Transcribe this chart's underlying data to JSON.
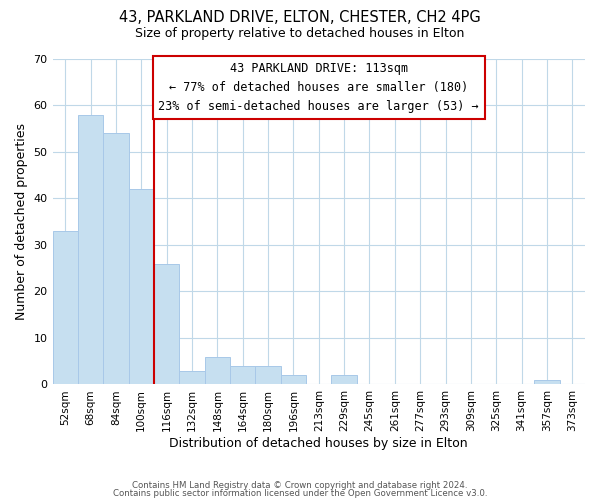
{
  "title_line1": "43, PARKLAND DRIVE, ELTON, CHESTER, CH2 4PG",
  "title_line2": "Size of property relative to detached houses in Elton",
  "xlabel": "Distribution of detached houses by size in Elton",
  "ylabel": "Number of detached properties",
  "bar_labels": [
    "52sqm",
    "68sqm",
    "84sqm",
    "100sqm",
    "116sqm",
    "132sqm",
    "148sqm",
    "164sqm",
    "180sqm",
    "196sqm",
    "213sqm",
    "229sqm",
    "245sqm",
    "261sqm",
    "277sqm",
    "293sqm",
    "309sqm",
    "325sqm",
    "341sqm",
    "357sqm",
    "373sqm"
  ],
  "bar_values": [
    33,
    58,
    54,
    42,
    26,
    3,
    6,
    4,
    4,
    2,
    0,
    2,
    0,
    0,
    0,
    0,
    0,
    0,
    0,
    1,
    0
  ],
  "bar_color": "#c6dff0",
  "bar_edge_color": "#a8c8e8",
  "highlight_line_color": "#cc0000",
  "highlight_line_index": 4,
  "highlight_box_text": "43 PARKLAND DRIVE: 113sqm\n← 77% of detached houses are smaller (180)\n23% of semi-detached houses are larger (53) →",
  "ylim": [
    0,
    70
  ],
  "yticks": [
    0,
    10,
    20,
    30,
    40,
    50,
    60,
    70
  ],
  "background_color": "#ffffff",
  "grid_color": "#c0d8e8",
  "footer_line1": "Contains HM Land Registry data © Crown copyright and database right 2024.",
  "footer_line2": "Contains public sector information licensed under the Open Government Licence v3.0."
}
